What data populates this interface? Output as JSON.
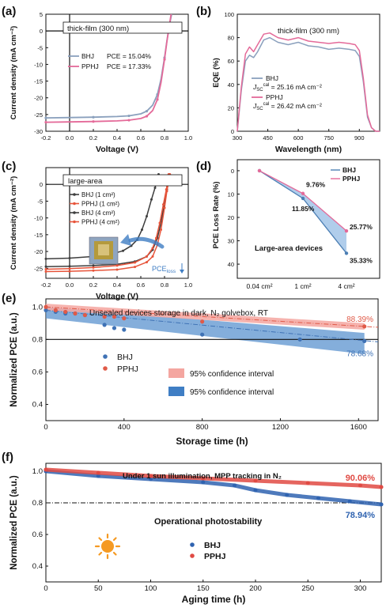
{
  "panels": {
    "a": {
      "letter": "(a)",
      "inset": "thick-film (300 nm)",
      "xlabel": "Voltage (V)",
      "ylabel": "Current density (mA cm⁻²)"
    },
    "b": {
      "letter": "(b)",
      "inset": "thick-film (300 nm)",
      "xlabel": "Wavelength (nm)",
      "ylabel": "EQE (%)"
    },
    "c": {
      "letter": "(c)",
      "inset": "large-area",
      "xlabel": "Voltage (V)",
      "ylabel": "Current density (mA cm⁻²)",
      "pce_note": "PCE",
      "pce_sub": "loss"
    },
    "d": {
      "letter": "(d)",
      "ylabel": "PCE Loss Rate (%)",
      "note": "Large-area devices"
    },
    "e": {
      "letter": "(e)",
      "title": "Unsealed devices storage in dark, N₂ golvebox, RT",
      "xlabel": "Storage time (h)",
      "ylabel": "Normalized PCE (a.u.)",
      "ci1": "95% confidence interval",
      "ci2": "95% confidence interval"
    },
    "f": {
      "letter": "(f)",
      "title": "Under 1 sun illumination,  MPP tracking in N₂",
      "subtitle": "Operational   photostability",
      "xlabel": "Aging time (h)",
      "ylabel": "Normalized PCE (a.u.)"
    }
  },
  "chart_data": [
    {
      "panel": "a",
      "type": "line",
      "xlim": [
        -0.2,
        1.0
      ],
      "ylim": [
        -30,
        5
      ],
      "xticks": [
        "-0.2",
        "0.0",
        "0.2",
        "0.4",
        "0.6",
        "0.8",
        "1.0"
      ],
      "yticks": [
        "5",
        "0",
        "-5",
        "-10",
        "-15",
        "-20",
        "-25",
        "-30"
      ],
      "series": [
        {
          "name": "BHJ",
          "pce": "PCE = 15.04%",
          "color": "#8aa0bd",
          "x": [
            -0.2,
            0.0,
            0.2,
            0.4,
            0.5,
            0.6,
            0.65,
            0.7,
            0.74,
            0.77,
            0.8,
            0.82,
            0.84,
            0.86
          ],
          "y": [
            -26.0,
            -25.9,
            -25.8,
            -25.6,
            -25.4,
            -24.8,
            -24.0,
            -22.2,
            -19.0,
            -14.5,
            -8.0,
            -3.0,
            1.5,
            5
          ]
        },
        {
          "name": "PPHJ",
          "pce": "PCE = 17.33%",
          "color": "#e46a99",
          "x": [
            -0.2,
            0.0,
            0.2,
            0.4,
            0.5,
            0.6,
            0.65,
            0.7,
            0.74,
            0.77,
            0.8,
            0.82,
            0.84,
            0.855
          ],
          "y": [
            -27.3,
            -27.2,
            -27.1,
            -26.9,
            -26.7,
            -26.2,
            -25.5,
            -23.8,
            -20.5,
            -15.5,
            -8.5,
            -3.2,
            1.5,
            5
          ]
        }
      ]
    },
    {
      "panel": "b",
      "type": "line",
      "xlim": [
        300,
        1000
      ],
      "ylim": [
        0,
        100
      ],
      "xticks": [
        "300",
        "450",
        "600",
        "750",
        "900"
      ],
      "yticks": [
        "0",
        "20",
        "40",
        "60",
        "80",
        "100"
      ],
      "series": [
        {
          "name": "BHJ",
          "jsc": "25.16 mA cm⁻²",
          "color": "#8aa0bd",
          "x": [
            300,
            320,
            340,
            360,
            380,
            400,
            430,
            460,
            500,
            550,
            600,
            650,
            700,
            750,
            800,
            850,
            880,
            900,
            920,
            940,
            960,
            980,
            1000
          ],
          "y": [
            0,
            35,
            60,
            65,
            63,
            68,
            78,
            80,
            76,
            74,
            76,
            73,
            72,
            70,
            71,
            70,
            69,
            64,
            42,
            12,
            3,
            0,
            0
          ]
        },
        {
          "name": "PPHJ",
          "jsc": "26.42 mA cm⁻²",
          "color": "#e46a99",
          "x": [
            300,
            320,
            340,
            360,
            380,
            400,
            430,
            460,
            500,
            550,
            600,
            650,
            700,
            750,
            800,
            850,
            880,
            900,
            920,
            940,
            960,
            980,
            1000
          ],
          "y": [
            0,
            38,
            66,
            72,
            68,
            74,
            83,
            84,
            80,
            78,
            80,
            77,
            76,
            75,
            76,
            75,
            74,
            69,
            45,
            14,
            3,
            0,
            0
          ]
        }
      ]
    },
    {
      "panel": "c",
      "type": "line",
      "xlim": [
        -0.2,
        1.0
      ],
      "ylim": [
        -28,
        5
      ],
      "xticks": [
        "-0.2",
        "0.0",
        "0.2",
        "0.4",
        "0.6",
        "0.8",
        "1.0"
      ],
      "yticks": [
        "0",
        "-5",
        "-10",
        "-15",
        "-20",
        "-25"
      ],
      "series": [
        {
          "name": "BHJ (1 cm²)",
          "color": "#3e3e3e",
          "x": [
            -0.2,
            0.0,
            0.2,
            0.4,
            0.55,
            0.65,
            0.7,
            0.74,
            0.77,
            0.8,
            0.82,
            0.84
          ],
          "y": [
            -24.5,
            -24.4,
            -24.2,
            -23.8,
            -23.0,
            -21.5,
            -19.5,
            -16.0,
            -11.5,
            -5.5,
            -1.5,
            3
          ]
        },
        {
          "name": "PPHJ (1 cm²)",
          "color": "#e7543a",
          "x": [
            -0.2,
            0.0,
            0.2,
            0.4,
            0.55,
            0.65,
            0.7,
            0.74,
            0.77,
            0.8,
            0.82,
            0.845
          ],
          "y": [
            -26.0,
            -25.9,
            -25.7,
            -25.4,
            -24.6,
            -23.2,
            -21.5,
            -18.0,
            -13.5,
            -7.0,
            -2.0,
            3
          ]
        },
        {
          "name": "BHJ (4 cm²)",
          "color": "#3e3e3e",
          "x": [
            -0.2,
            0.0,
            0.2,
            0.35,
            0.45,
            0.52,
            0.57,
            0.61,
            0.65,
            0.69,
            0.72,
            0.75
          ],
          "y": [
            -22.2,
            -22.0,
            -21.5,
            -20.8,
            -19.8,
            -18.3,
            -16.5,
            -13.5,
            -9.5,
            -4.5,
            -1.0,
            3
          ]
        },
        {
          "name": "PPHJ (4 cm²)",
          "color": "#e7543a",
          "x": [
            -0.2,
            0.0,
            0.2,
            0.4,
            0.55,
            0.65,
            0.7,
            0.73,
            0.76,
            0.79,
            0.815,
            0.835
          ],
          "y": [
            -25.3,
            -25.1,
            -24.8,
            -24.2,
            -23.3,
            -21.5,
            -19.0,
            -16.0,
            -11.5,
            -6.0,
            -1.5,
            3
          ]
        }
      ]
    },
    {
      "panel": "d",
      "type": "line",
      "categories": [
        "0.04 cm²",
        "1 cm²",
        "4 cm²"
      ],
      "ylim": [
        -2,
        42
      ],
      "yticks": [
        "0",
        "10",
        "20",
        "30",
        "40"
      ],
      "series": [
        {
          "name": "BHJ",
          "color": "#4c7fb4",
          "values": [
            0,
            11.85,
            35.33
          ],
          "labels": [
            "",
            "11.85%",
            "35.33%"
          ]
        },
        {
          "name": "PPHJ",
          "color": "#e46a99",
          "values": [
            0,
            9.76,
            25.77
          ],
          "labels": [
            "",
            "9.76%",
            "25.77%"
          ]
        }
      ]
    },
    {
      "panel": "e",
      "type": "scatter",
      "xlim": [
        0,
        1700
      ],
      "ylim": [
        0.3,
        1.05
      ],
      "xticks": [
        "0",
        "400",
        "800",
        "1200",
        "1600"
      ],
      "yticks": [
        "0.4",
        "0.6",
        "0.8",
        "1.0"
      ],
      "ref_y": 0.8,
      "series": [
        {
          "name": "BHJ",
          "color": "#3f72b5",
          "x": [
            0,
            50,
            100,
            150,
            200,
            300,
            350,
            400,
            800,
            1300,
            1630
          ],
          "y": [
            0.98,
            0.97,
            0.96,
            0.96,
            0.95,
            0.89,
            0.87,
            0.86,
            0.83,
            0.8,
            0.79
          ],
          "end_label": "78.68%"
        },
        {
          "name": "PPHJ",
          "color": "#e05a48",
          "x": [
            0,
            50,
            100,
            150,
            200,
            300,
            350,
            400,
            800,
            1630
          ],
          "y": [
            1.0,
            0.98,
            0.97,
            0.96,
            0.95,
            0.94,
            0.94,
            0.93,
            0.91,
            0.88
          ],
          "end_label": "88.39%"
        }
      ]
    },
    {
      "panel": "f",
      "type": "scatter",
      "xlim": [
        0,
        320
      ],
      "ylim": [
        0.3,
        1.05
      ],
      "xticks": [
        "0",
        "50",
        "100",
        "150",
        "200",
        "250",
        "300"
      ],
      "yticks": [
        "0.4",
        "0.6",
        "0.8",
        "1.0"
      ],
      "ref_y": 0.8,
      "series": [
        {
          "name": "BHJ",
          "color": "#2f63b0",
          "x": [
            0,
            50,
            100,
            150,
            180,
            200,
            230,
            260,
            290,
            320
          ],
          "y": [
            1.0,
            0.97,
            0.95,
            0.93,
            0.91,
            0.88,
            0.85,
            0.83,
            0.81,
            0.79
          ],
          "end_label": "78.94%"
        },
        {
          "name": "PPHJ",
          "color": "#e04a43",
          "x": [
            0,
            50,
            100,
            150,
            200,
            250,
            300,
            320
          ],
          "y": [
            1.01,
            0.99,
            0.97,
            0.955,
            0.94,
            0.925,
            0.91,
            0.9
          ],
          "end_label": "90.06%"
        }
      ]
    }
  ]
}
